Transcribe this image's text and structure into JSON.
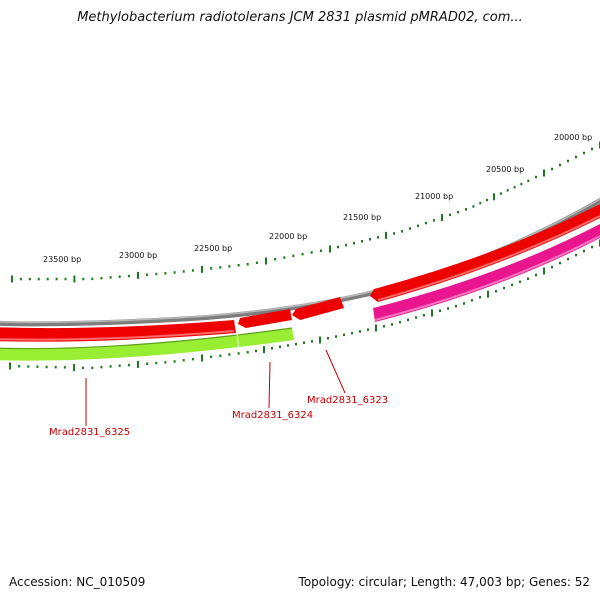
{
  "title": "Methylobacterium radiotolerans JCM 2831 plasmid pMRAD02, com...",
  "accession": "Accession: NC_010509",
  "summary": "Topology: circular; Length: 47,003 bp; Genes: 52",
  "colors": {
    "backbone": "#8a8a8a",
    "cds_forward": "#ee0000",
    "cds_reverse": "#e8158e",
    "gene_track": "#99ee33",
    "ticks": "#1f7a1f",
    "gene_label": "#c40000"
  },
  "tick_labels": [
    {
      "bp": 20000,
      "text": "20000 bp"
    },
    {
      "bp": 20500,
      "text": "20500 bp"
    },
    {
      "bp": 21000,
      "text": "21000 bp"
    },
    {
      "bp": 21500,
      "text": "21500 bp"
    },
    {
      "bp": 22000,
      "text": "22000 bp"
    },
    {
      "bp": 22500,
      "text": "22500 bp"
    },
    {
      "bp": 23000,
      "text": "23000 bp"
    },
    {
      "bp": 23500,
      "text": "23500 bp"
    }
  ],
  "gene_labels": [
    {
      "name": "Mrad2831_6323"
    },
    {
      "name": "Mrad2831_6324"
    },
    {
      "name": "Mrad2831_6325"
    }
  ]
}
